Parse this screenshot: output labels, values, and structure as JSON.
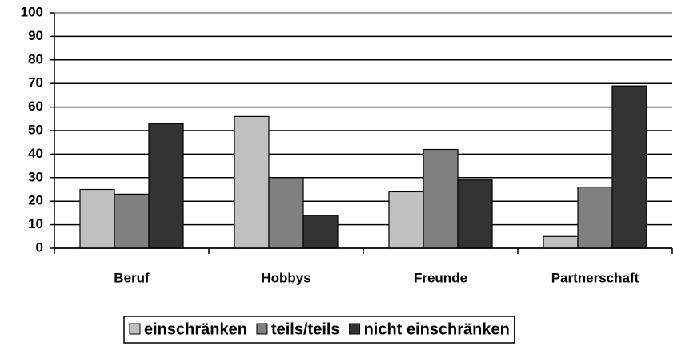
{
  "chart_data": {
    "type": "bar",
    "categories": [
      "Beruf",
      "Hobbys",
      "Freunde",
      "Partnerschaft"
    ],
    "series": [
      {
        "name": "einschränken",
        "color": "#c0c0c0",
        "values": [
          25,
          56,
          24,
          5
        ]
      },
      {
        "name": "teils/teils",
        "color": "#808080",
        "values": [
          23,
          30,
          42,
          26
        ]
      },
      {
        "name": "nicht einschränken",
        "color": "#333333",
        "values": [
          53,
          14,
          29,
          69
        ]
      }
    ],
    "ylim": [
      0,
      100
    ],
    "yticks": [
      0,
      10,
      20,
      30,
      40,
      50,
      60,
      70,
      80,
      90,
      100
    ],
    "grid": true,
    "legend": "bottom"
  }
}
